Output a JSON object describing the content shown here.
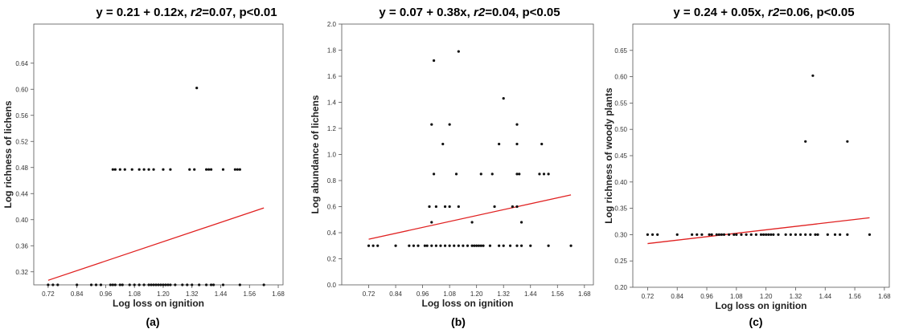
{
  "chart_data": [
    {
      "type": "scatter",
      "title": "y = 0.21 + 0.12x, r2=0.07, p<0.01",
      "title_parts": [
        "y = 0.21 + 0.12x, ",
        "r2",
        "=0.07, p<0.01"
      ],
      "panel_label": "(a)",
      "xlabel": "Log loss on ignition",
      "ylabel": "Log richness of lichens",
      "xlim": [
        0.66,
        1.7
      ],
      "ylim": [
        0.3,
        0.7
      ],
      "xticks": [
        0.72,
        0.84,
        0.96,
        1.08,
        1.2,
        1.32,
        1.44,
        1.56,
        1.68
      ],
      "xtick_labels": [
        "0.72",
        "0.84",
        "0.96",
        "1.08",
        "1.20",
        "1.32",
        "1.44",
        "1.56",
        "1.68"
      ],
      "yticks": [
        0.32,
        0.36,
        0.4,
        0.44,
        0.48,
        0.52,
        0.56,
        0.6,
        0.64
      ],
      "ytick_labels": [
        "0.32",
        "0.36",
        "0.40",
        "0.44",
        "0.48",
        "0.52",
        "0.56",
        "0.60",
        "0.64"
      ],
      "fit_line": {
        "x": [
          0.72,
          1.62
        ],
        "y": [
          0.307,
          0.418
        ],
        "color": "#e02020"
      },
      "points": {
        "x": [
          0.72,
          0.74,
          0.76,
          0.84,
          0.9,
          0.92,
          0.94,
          0.98,
          0.99,
          1.0,
          1.02,
          1.03,
          1.06,
          1.08,
          1.1,
          1.12,
          1.14,
          1.15,
          1.16,
          1.17,
          1.18,
          1.19,
          1.2,
          1.21,
          1.22,
          1.23,
          1.25,
          1.28,
          1.3,
          1.32,
          1.35,
          1.38,
          1.4,
          1.41,
          1.45,
          1.52,
          1.62,
          0.99,
          1.0,
          1.02,
          1.04,
          1.07,
          1.1,
          1.12,
          1.14,
          1.16,
          1.2,
          1.23,
          1.31,
          1.33,
          1.38,
          1.39,
          1.4,
          1.45,
          1.5,
          1.51,
          1.52,
          1.34
        ],
        "y": [
          0.3,
          0.3,
          0.3,
          0.3,
          0.3,
          0.3,
          0.3,
          0.3,
          0.3,
          0.3,
          0.3,
          0.3,
          0.3,
          0.3,
          0.3,
          0.3,
          0.3,
          0.3,
          0.3,
          0.3,
          0.3,
          0.3,
          0.3,
          0.3,
          0.3,
          0.3,
          0.3,
          0.3,
          0.3,
          0.3,
          0.3,
          0.3,
          0.3,
          0.3,
          0.3,
          0.3,
          0.3,
          0.477,
          0.477,
          0.477,
          0.477,
          0.477,
          0.477,
          0.477,
          0.477,
          0.477,
          0.477,
          0.477,
          0.477,
          0.477,
          0.477,
          0.477,
          0.477,
          0.477,
          0.477,
          0.477,
          0.477,
          0.602
        ]
      }
    },
    {
      "type": "scatter",
      "title": "y = 0.07 + 0.38x, r2=0.04, p<0.05",
      "title_parts": [
        "y = 0.07 + 0.38x, ",
        "r2",
        "=0.04, p<0.05"
      ],
      "panel_label": "(b)",
      "xlabel": "Log loss on ignition",
      "ylabel": "Log abundance of lichens",
      "xlim": [
        0.6,
        1.72
      ],
      "ylim": [
        0.0,
        2.0
      ],
      "xticks": [
        0.72,
        0.84,
        0.96,
        1.08,
        1.2,
        1.32,
        1.44,
        1.56,
        1.68
      ],
      "xtick_labels": [
        "0.72",
        "0.84",
        "0.96",
        "1.08",
        "1.20",
        "1.32",
        "1.44",
        "1.56",
        "1.68"
      ],
      "yticks": [
        0.0,
        0.2,
        0.4,
        0.6,
        0.8,
        1.0,
        1.2,
        1.4,
        1.6,
        1.8,
        2.0
      ],
      "ytick_labels": [
        "0.0",
        "0.2",
        "0.4",
        "0.6",
        "0.8",
        "1.0",
        "1.2",
        "1.4",
        "1.6",
        "1.8",
        "2.0"
      ],
      "fit_line": {
        "x": [
          0.72,
          1.62
        ],
        "y": [
          0.35,
          0.69
        ],
        "color": "#e02020"
      },
      "points": {
        "x": [
          0.72,
          0.74,
          0.76,
          0.84,
          0.9,
          0.92,
          0.94,
          0.97,
          0.98,
          1.0,
          1.02,
          1.04,
          1.06,
          1.08,
          1.1,
          1.12,
          1.14,
          1.16,
          1.18,
          1.19,
          1.2,
          1.21,
          1.22,
          1.23,
          1.26,
          1.3,
          1.32,
          1.35,
          1.38,
          1.4,
          1.44,
          1.52,
          1.62,
          0.99,
          1.02,
          1.06,
          1.08,
          1.12,
          1.28,
          1.36,
          1.38,
          1.0,
          1.18,
          1.4,
          1.01,
          1.11,
          1.22,
          1.27,
          1.38,
          1.39,
          1.48,
          1.5,
          1.52,
          1.05,
          1.3,
          1.38,
          1.49,
          1.0,
          1.08,
          1.38,
          1.32,
          1.01,
          1.12
        ],
        "y": [
          0.3,
          0.3,
          0.3,
          0.3,
          0.3,
          0.3,
          0.3,
          0.3,
          0.3,
          0.3,
          0.3,
          0.3,
          0.3,
          0.3,
          0.3,
          0.3,
          0.3,
          0.3,
          0.3,
          0.3,
          0.3,
          0.3,
          0.3,
          0.3,
          0.3,
          0.3,
          0.3,
          0.3,
          0.3,
          0.3,
          0.3,
          0.3,
          0.3,
          0.6,
          0.6,
          0.6,
          0.6,
          0.6,
          0.6,
          0.6,
          0.6,
          0.48,
          0.48,
          0.48,
          0.85,
          0.85,
          0.85,
          0.85,
          0.85,
          0.85,
          0.85,
          0.85,
          0.85,
          1.08,
          1.08,
          1.08,
          1.08,
          1.23,
          1.23,
          1.23,
          1.43,
          1.72,
          1.79
        ]
      }
    },
    {
      "type": "scatter",
      "title": "y = 0.24 + 0.05x, r2=0.06, p<0.05",
      "title_parts": [
        "y = 0.24 + 0.05x, ",
        "r2",
        "=0.06, p<0.05"
      ],
      "panel_label": "(c)",
      "xlabel": "Log loss on ignition",
      "ylabel": "Log richness of woody plants",
      "xlim": [
        0.66,
        1.7
      ],
      "ylim": [
        0.2,
        0.7
      ],
      "xticks": [
        0.72,
        0.84,
        0.96,
        1.08,
        1.2,
        1.32,
        1.44,
        1.56,
        1.68
      ],
      "xtick_labels": [
        "0.72",
        "0.84",
        "0.96",
        "1.08",
        "1.20",
        "1.32",
        "1.44",
        "1.56",
        "1.68"
      ],
      "yticks": [
        0.2,
        0.25,
        0.3,
        0.35,
        0.4,
        0.45,
        0.5,
        0.55,
        0.6,
        0.65
      ],
      "ytick_labels": [
        "0.20",
        "0.25",
        "0.30",
        "0.35",
        "0.40",
        "0.45",
        "0.50",
        "0.55",
        "0.60",
        "0.65"
      ],
      "fit_line": {
        "x": [
          0.72,
          1.62
        ],
        "y": [
          0.283,
          0.332
        ],
        "color": "#e02020"
      },
      "points": {
        "x": [
          0.72,
          0.74,
          0.76,
          0.84,
          0.9,
          0.92,
          0.94,
          0.97,
          0.98,
          1.0,
          1.01,
          1.02,
          1.03,
          1.05,
          1.07,
          1.08,
          1.1,
          1.12,
          1.14,
          1.16,
          1.18,
          1.19,
          1.2,
          1.21,
          1.22,
          1.23,
          1.25,
          1.28,
          1.3,
          1.32,
          1.34,
          1.36,
          1.38,
          1.4,
          1.41,
          1.45,
          1.48,
          1.5,
          1.53,
          1.62,
          1.36,
          1.53,
          1.39
        ],
        "y": [
          0.3,
          0.3,
          0.3,
          0.3,
          0.3,
          0.3,
          0.3,
          0.3,
          0.3,
          0.3,
          0.3,
          0.3,
          0.3,
          0.3,
          0.3,
          0.3,
          0.3,
          0.3,
          0.3,
          0.3,
          0.3,
          0.3,
          0.3,
          0.3,
          0.3,
          0.3,
          0.3,
          0.3,
          0.3,
          0.3,
          0.3,
          0.3,
          0.3,
          0.3,
          0.3,
          0.3,
          0.3,
          0.3,
          0.3,
          0.3,
          0.477,
          0.477,
          0.602
        ]
      }
    }
  ]
}
